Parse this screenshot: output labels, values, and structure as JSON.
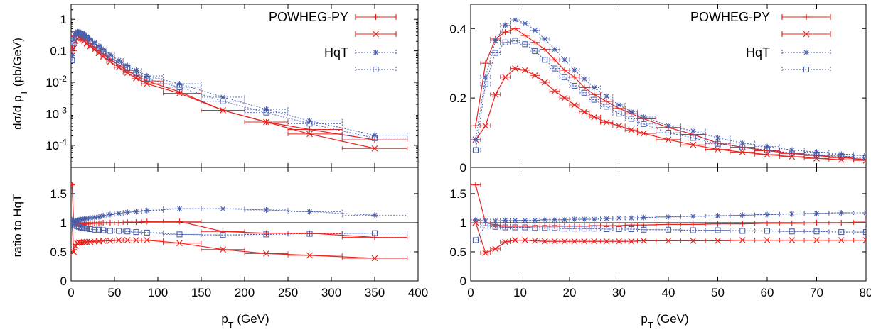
{
  "colors": {
    "powheg": "#e8231f",
    "hqt": "#4a5faa",
    "axis": "#000000"
  },
  "legend": {
    "powheg_label": "POWHEG-PY",
    "hqt_label": "HqT"
  },
  "axis_labels": {
    "left_top_ylabel": "dσ/d p_T (pb/GeV)",
    "left_bottom_ylabel": "ratio to HqT",
    "xlabel": "p_T (GeV)"
  },
  "chart_data": [
    {
      "type": "line",
      "panel": "left-top",
      "x_range": [
        0,
        400
      ],
      "y_scale": "log",
      "ylim": [
        2e-05,
        3
      ],
      "yticks": [
        {
          "v": 1,
          "label": "1"
        },
        {
          "v": 0.1,
          "label": "0.1"
        },
        {
          "v": 0.01,
          "label": "10^-2"
        },
        {
          "v": 0.001,
          "label": "10^-3"
        },
        {
          "v": 0.0001,
          "label": "10^-4"
        }
      ],
      "xticks": [],
      "legend_position": "top-right",
      "x": [
        1,
        3,
        5,
        7,
        9,
        11,
        13,
        15,
        18,
        22,
        27,
        32,
        37,
        45,
        55,
        65,
        75,
        87.5,
        125,
        175,
        225,
        275,
        350
      ],
      "series": [
        {
          "name": "POWHEG-PY",
          "group": "powheg",
          "marker": "plus",
          "dashed": false,
          "values": [
            0.12,
            0.3,
            0.37,
            0.35,
            0.32,
            0.29,
            0.27,
            0.25,
            0.21,
            0.17,
            0.13,
            0.1,
            0.08,
            0.055,
            0.035,
            0.024,
            0.016,
            0.011,
            0.005,
            0.0013,
            0.00055,
            0.00032,
            0.00015
          ]
        },
        {
          "name": "",
          "group": "powheg",
          "marker": "x",
          "dashed": false,
          "values": [
            0.07,
            0.12,
            0.2,
            0.25,
            0.26,
            0.25,
            0.23,
            0.21,
            0.17,
            0.14,
            0.11,
            0.085,
            0.065,
            0.045,
            0.03,
            0.02,
            0.0135,
            0.009,
            0.0045,
            0.0013,
            0.00055,
            0.00023,
            8e-05
          ]
        },
        {
          "name": "HqT",
          "group": "hqt",
          "marker": "star",
          "dashed": true,
          "values": [
            0.07,
            0.25,
            0.36,
            0.4,
            0.4,
            0.38,
            0.36,
            0.33,
            0.28,
            0.23,
            0.18,
            0.14,
            0.11,
            0.075,
            0.05,
            0.034,
            0.024,
            0.016,
            0.009,
            0.0034,
            0.0014,
            0.0006,
            0.00021
          ]
        },
        {
          "name": "",
          "group": "hqt",
          "marker": "square",
          "dashed": true,
          "values": [
            0.05,
            0.18,
            0.3,
            0.35,
            0.36,
            0.35,
            0.33,
            0.3,
            0.25,
            0.2,
            0.16,
            0.12,
            0.095,
            0.063,
            0.042,
            0.029,
            0.02,
            0.013,
            0.007,
            0.0025,
            0.0011,
            0.00049,
            0.00017
          ]
        }
      ]
    },
    {
      "type": "line",
      "panel": "left-bottom",
      "x_range": [
        0,
        400
      ],
      "ylim": [
        0,
        1.95
      ],
      "yticks": [
        {
          "v": 0,
          "label": "0"
        },
        {
          "v": 0.5,
          "label": "0.5"
        },
        {
          "v": 1,
          "label": "1"
        },
        {
          "v": 1.5,
          "label": "1.5"
        }
      ],
      "xticks": [
        {
          "v": 0,
          "label": "0"
        },
        {
          "v": 50,
          "label": "50"
        },
        {
          "v": 100,
          "label": "100"
        },
        {
          "v": 150,
          "label": "150"
        },
        {
          "v": 200,
          "label": "200"
        },
        {
          "v": 250,
          "label": "250"
        },
        {
          "v": 300,
          "label": "300"
        },
        {
          "v": 350,
          "label": "350"
        },
        {
          "v": 400,
          "label": "400"
        }
      ],
      "reference_line": 1,
      "x": [
        1,
        3,
        5,
        7,
        9,
        11,
        13,
        15,
        18,
        22,
        27,
        32,
        37,
        45,
        55,
        65,
        75,
        87.5,
        125,
        175,
        225,
        275,
        350
      ],
      "series": [
        {
          "name": "POWHEG-PY",
          "group": "powheg",
          "marker": "plus",
          "dashed": false,
          "values": [
            1.65,
            1.0,
            1.0,
            0.98,
            0.97,
            0.97,
            0.97,
            0.97,
            0.98,
            0.98,
            0.99,
            0.99,
            1.0,
            1.0,
            1.0,
            1.01,
            1.01,
            1.02,
            1.02,
            0.85,
            0.82,
            0.82,
            0.75
          ]
        },
        {
          "name": "",
          "group": "powheg",
          "marker": "x",
          "dashed": false,
          "values": [
            1.0,
            0.5,
            0.6,
            0.65,
            0.66,
            0.66,
            0.66,
            0.67,
            0.67,
            0.67,
            0.68,
            0.68,
            0.69,
            0.69,
            0.7,
            0.7,
            0.7,
            0.7,
            0.65,
            0.54,
            0.47,
            0.44,
            0.39
          ]
        },
        {
          "name": "HqT",
          "group": "hqt",
          "marker": "star",
          "dashed": true,
          "values": [
            1.05,
            1.02,
            1.03,
            1.04,
            1.05,
            1.05,
            1.06,
            1.06,
            1.07,
            1.08,
            1.09,
            1.1,
            1.12,
            1.14,
            1.16,
            1.18,
            1.19,
            1.21,
            1.24,
            1.24,
            1.22,
            1.19,
            1.13
          ]
        },
        {
          "name": "",
          "group": "hqt",
          "marker": "square",
          "dashed": true,
          "values": [
            0.97,
            0.97,
            0.95,
            0.94,
            0.93,
            0.92,
            0.91,
            0.91,
            0.9,
            0.89,
            0.88,
            0.88,
            0.87,
            0.86,
            0.86,
            0.85,
            0.84,
            0.83,
            0.8,
            0.79,
            0.8,
            0.81,
            0.82
          ]
        }
      ]
    },
    {
      "type": "line",
      "panel": "right-top",
      "x_range": [
        0,
        80
      ],
      "ylim": [
        0,
        0.47
      ],
      "yticks": [
        {
          "v": 0,
          "label": "0"
        },
        {
          "v": 0.2,
          "label": "0.2"
        },
        {
          "v": 0.4,
          "label": "0.4"
        }
      ],
      "xticks": [],
      "legend_position": "top-right",
      "x": [
        1,
        3,
        5,
        7,
        9,
        11,
        13,
        15,
        17,
        19,
        21,
        23,
        25,
        27.5,
        30,
        32.5,
        35,
        40,
        45,
        50,
        55,
        60,
        65,
        70,
        75,
        80
      ],
      "series": [
        {
          "name": "POWHEG-PY",
          "group": "powheg",
          "marker": "plus",
          "dashed": false,
          "values": [
            0.12,
            0.3,
            0.37,
            0.39,
            0.4,
            0.38,
            0.36,
            0.34,
            0.31,
            0.28,
            0.26,
            0.23,
            0.21,
            0.19,
            0.17,
            0.155,
            0.14,
            0.115,
            0.095,
            0.07,
            0.058,
            0.048,
            0.04,
            0.034,
            0.028,
            0.023
          ]
        },
        {
          "name": "",
          "group": "powheg",
          "marker": "x",
          "dashed": false,
          "values": [
            0.08,
            0.12,
            0.21,
            0.26,
            0.285,
            0.28,
            0.265,
            0.245,
            0.22,
            0.2,
            0.18,
            0.16,
            0.145,
            0.13,
            0.12,
            0.108,
            0.098,
            0.08,
            0.065,
            0.052,
            0.044,
            0.037,
            0.031,
            0.026,
            0.022,
            0.02
          ]
        },
        {
          "name": "HqT",
          "group": "hqt",
          "marker": "star",
          "dashed": true,
          "values": [
            0.08,
            0.26,
            0.365,
            0.41,
            0.425,
            0.415,
            0.395,
            0.37,
            0.34,
            0.31,
            0.28,
            0.255,
            0.23,
            0.205,
            0.18,
            0.16,
            0.145,
            0.12,
            0.105,
            0.085,
            0.07,
            0.06,
            0.05,
            0.044,
            0.038,
            0.034
          ]
        },
        {
          "name": "",
          "group": "hqt",
          "marker": "square",
          "dashed": true,
          "values": [
            0.05,
            0.24,
            0.33,
            0.36,
            0.365,
            0.355,
            0.335,
            0.31,
            0.285,
            0.26,
            0.235,
            0.215,
            0.195,
            0.175,
            0.155,
            0.14,
            0.125,
            0.1,
            0.085,
            0.068,
            0.058,
            0.05,
            0.042,
            0.036,
            0.032,
            0.028
          ]
        }
      ]
    },
    {
      "type": "line",
      "panel": "right-bottom",
      "x_range": [
        0,
        80
      ],
      "ylim": [
        0,
        1.95
      ],
      "yticks": [
        {
          "v": 0,
          "label": "0"
        },
        {
          "v": 0.5,
          "label": "0.5"
        },
        {
          "v": 1,
          "label": "1"
        },
        {
          "v": 1.5,
          "label": "1.5"
        }
      ],
      "xticks": [
        {
          "v": 0,
          "label": "0"
        },
        {
          "v": 10,
          "label": "10"
        },
        {
          "v": 20,
          "label": "20"
        },
        {
          "v": 30,
          "label": "30"
        },
        {
          "v": 40,
          "label": "40"
        },
        {
          "v": 50,
          "label": "50"
        },
        {
          "v": 60,
          "label": "60"
        },
        {
          "v": 70,
          "label": "70"
        },
        {
          "v": 80,
          "label": "80"
        }
      ],
      "reference_line": 1,
      "x": [
        1,
        3,
        5,
        7,
        9,
        11,
        13,
        15,
        17,
        19,
        21,
        23,
        25,
        27.5,
        30,
        32.5,
        35,
        40,
        45,
        50,
        55,
        60,
        65,
        70,
        75,
        80
      ],
      "series": [
        {
          "name": "POWHEG-PY",
          "group": "powheg",
          "marker": "plus",
          "dashed": false,
          "values": [
            1.65,
            1.0,
            0.96,
            0.94,
            0.94,
            0.94,
            0.94,
            0.94,
            0.94,
            0.94,
            0.94,
            0.94,
            0.95,
            0.95,
            0.95,
            0.96,
            0.96,
            0.97,
            0.97,
            0.98,
            0.98,
            0.99,
            0.99,
            1.0,
            1.0,
            1.01
          ]
        },
        {
          "name": "",
          "group": "powheg",
          "marker": "x",
          "dashed": false,
          "values": [
            1.0,
            0.48,
            0.55,
            0.67,
            0.7,
            0.7,
            0.69,
            0.68,
            0.68,
            0.68,
            0.68,
            0.68,
            0.68,
            0.68,
            0.68,
            0.68,
            0.69,
            0.69,
            0.69,
            0.69,
            0.7,
            0.7,
            0.7,
            0.7,
            0.7,
            0.7
          ]
        },
        {
          "name": "HqT",
          "group": "hqt",
          "marker": "star",
          "dashed": true,
          "values": [
            1.05,
            1.03,
            1.03,
            1.04,
            1.04,
            1.04,
            1.04,
            1.05,
            1.05,
            1.05,
            1.06,
            1.06,
            1.06,
            1.07,
            1.08,
            1.08,
            1.09,
            1.1,
            1.11,
            1.12,
            1.13,
            1.14,
            1.15,
            1.16,
            1.17,
            1.17
          ]
        },
        {
          "name": "",
          "group": "hqt",
          "marker": "square",
          "dashed": true,
          "values": [
            0.7,
            0.95,
            0.93,
            0.92,
            0.92,
            0.92,
            0.91,
            0.91,
            0.91,
            0.9,
            0.9,
            0.9,
            0.9,
            0.89,
            0.89,
            0.89,
            0.88,
            0.88,
            0.87,
            0.87,
            0.86,
            0.86,
            0.85,
            0.85,
            0.84,
            0.84
          ]
        }
      ]
    }
  ]
}
